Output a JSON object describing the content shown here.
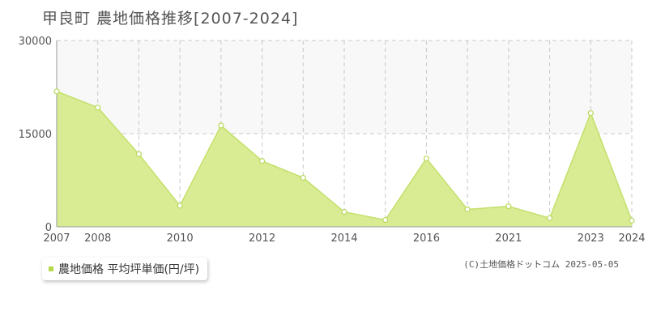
{
  "chart_data": {
    "type": "area",
    "title": "甲良町 農地価格推移[2007-2024]",
    "x": [
      2007,
      2008,
      2009,
      2010,
      2011,
      2012,
      2013,
      2014,
      2015,
      2016,
      2017,
      2018,
      2019,
      2020,
      2021,
      2022,
      2023,
      2024
    ],
    "x_tick_labels": [
      "2007",
      "2008",
      "2010",
      "2012",
      "2014",
      "2016",
      "2021",
      "2023",
      "2024"
    ],
    "x_tick_label_values": [
      2007,
      2008,
      2010,
      2012,
      2014,
      2016,
      2021,
      2023,
      2024
    ],
    "x_axis_order": [
      2007,
      2008,
      2009,
      2010,
      2011,
      2012,
      2013,
      2014,
      2015,
      2016,
      2017,
      2021,
      2022,
      2023,
      2024
    ],
    "series": [
      {
        "name": "農地価格 平均坪単価(円/坪)",
        "points": [
          {
            "x": 2007,
            "y": 21800
          },
          {
            "x": 2008,
            "y": 19200
          },
          {
            "x": 2009,
            "y": 11700
          },
          {
            "x": 2010,
            "y": 3400
          },
          {
            "x": 2011,
            "y": 16300
          },
          {
            "x": 2012,
            "y": 10600
          },
          {
            "x": 2013,
            "y": 7900
          },
          {
            "x": 2014,
            "y": 2400
          },
          {
            "x": 2015,
            "y": 1100
          },
          {
            "x": 2016,
            "y": 11000
          },
          {
            "x": 2017,
            "y": 2800
          },
          {
            "x": 2021,
            "y": 3300
          },
          {
            "x": 2022,
            "y": 1400
          },
          {
            "x": 2023,
            "y": 18300
          },
          {
            "x": 2024,
            "y": 1000
          }
        ]
      }
    ],
    "y_ticks": [
      0,
      15000,
      30000
    ],
    "ylim": [
      0,
      30000
    ],
    "grid": true,
    "legend_position": "bottom-left"
  },
  "colors": {
    "area_fill": "#d9ec94",
    "line": "#c3e06a",
    "marker_fill": "#ffffff",
    "marker_stroke": "#b8d95a",
    "legend_swatch": "#b5d94b",
    "grid": "#c8c8c8",
    "upper_band": "#f8f8f8",
    "axis": "#999999"
  },
  "legend": {
    "label": "農地価格 平均坪単価(円/坪)"
  },
  "copyright": "(C)土地価格ドットコム 2025-05-05"
}
